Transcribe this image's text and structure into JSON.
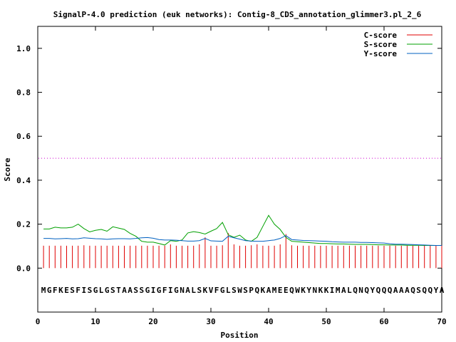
{
  "chart_data": {
    "type": "line",
    "title": "SignalP-4.0 prediction (euk networks): Contig-8_CDS_annotation_glimmer3.pl_2_6",
    "xlabel": "Position",
    "ylabel": "Score",
    "xlim": [
      0,
      70
    ],
    "ylim": [
      -0.2,
      1.1
    ],
    "xticks": [
      0,
      10,
      20,
      30,
      40,
      50,
      60,
      70
    ],
    "yticks": [
      0.0,
      0.2,
      0.4,
      0.6,
      0.8,
      1.0
    ],
    "ytick_labels": [
      "0.0",
      "0.2",
      "0.4",
      "0.6",
      "0.8",
      "1.0"
    ],
    "threshold": 0.5,
    "sequence": "MGFKESFISGLGSTAASSGIGFIGNALSKVFGLSWSPQKAMEEQWKYNKKIMALQNQYQQQAAAQSQQYA",
    "legend_position": "top-right",
    "colors": {
      "c_score": "#e00000",
      "s_score": "#00a000",
      "y_score": "#0060c0",
      "threshold": "#d000d0"
    },
    "series": [
      {
        "name": "C-score",
        "style": "impulses",
        "x": [
          1,
          2,
          3,
          4,
          5,
          6,
          7,
          8,
          9,
          10,
          11,
          12,
          13,
          14,
          15,
          16,
          17,
          18,
          19,
          20,
          21,
          22,
          23,
          24,
          25,
          26,
          27,
          28,
          29,
          30,
          31,
          32,
          33,
          34,
          35,
          36,
          37,
          38,
          39,
          40,
          41,
          42,
          43,
          44,
          45,
          46,
          47,
          48,
          49,
          50,
          51,
          52,
          53,
          54,
          55,
          56,
          57,
          58,
          59,
          60,
          61,
          62,
          63,
          64,
          65,
          66,
          67,
          68,
          69,
          70
        ],
        "values": [
          0.102,
          0.102,
          0.102,
          0.102,
          0.102,
          0.102,
          0.102,
          0.104,
          0.102,
          0.102,
          0.102,
          0.102,
          0.102,
          0.102,
          0.102,
          0.102,
          0.102,
          0.102,
          0.102,
          0.102,
          0.102,
          0.102,
          0.108,
          0.102,
          0.102,
          0.102,
          0.102,
          0.108,
          0.14,
          0.102,
          0.102,
          0.104,
          0.16,
          0.108,
          0.102,
          0.102,
          0.104,
          0.108,
          0.102,
          0.102,
          0.102,
          0.108,
          0.155,
          0.104,
          0.102,
          0.102,
          0.102,
          0.102,
          0.102,
          0.102,
          0.102,
          0.102,
          0.102,
          0.102,
          0.102,
          0.102,
          0.102,
          0.102,
          0.102,
          0.102,
          0.102,
          0.102,
          0.102,
          0.102,
          0.102,
          0.102,
          0.102,
          0.102,
          0.102,
          0.102
        ]
      },
      {
        "name": "S-score",
        "style": "line",
        "x": [
          1,
          2,
          3,
          4,
          5,
          6,
          7,
          8,
          9,
          10,
          11,
          12,
          13,
          14,
          15,
          16,
          17,
          18,
          19,
          20,
          21,
          22,
          23,
          24,
          25,
          26,
          27,
          28,
          29,
          30,
          31,
          32,
          33,
          34,
          35,
          36,
          37,
          38,
          39,
          40,
          41,
          42,
          43,
          44,
          45,
          46,
          47,
          48,
          49,
          50,
          51,
          52,
          53,
          54,
          55,
          56,
          57,
          58,
          59,
          60,
          61,
          62,
          63,
          64,
          65,
          66,
          67,
          68,
          69,
          70
        ],
        "values": [
          0.178,
          0.178,
          0.186,
          0.183,
          0.183,
          0.186,
          0.2,
          0.18,
          0.165,
          0.172,
          0.176,
          0.168,
          0.188,
          0.182,
          0.176,
          0.158,
          0.145,
          0.122,
          0.118,
          0.118,
          0.112,
          0.105,
          0.125,
          0.122,
          0.128,
          0.16,
          0.166,
          0.162,
          0.155,
          0.168,
          0.18,
          0.208,
          0.152,
          0.14,
          0.15,
          0.128,
          0.122,
          0.14,
          0.19,
          0.24,
          0.2,
          0.176,
          0.14,
          0.122,
          0.12,
          0.118,
          0.116,
          0.114,
          0.112,
          0.112,
          0.111,
          0.11,
          0.11,
          0.109,
          0.108,
          0.108,
          0.108,
          0.107,
          0.106,
          0.106,
          0.105,
          0.105,
          0.105,
          0.104,
          0.104,
          0.104,
          0.103,
          0.103,
          0.103,
          0.103
        ]
      },
      {
        "name": "Y-score",
        "style": "line",
        "x": [
          1,
          2,
          3,
          4,
          5,
          6,
          7,
          8,
          9,
          10,
          11,
          12,
          13,
          14,
          15,
          16,
          17,
          18,
          19,
          20,
          21,
          22,
          23,
          24,
          25,
          26,
          27,
          28,
          29,
          30,
          31,
          32,
          33,
          34,
          35,
          36,
          37,
          38,
          39,
          40,
          41,
          42,
          43,
          44,
          45,
          46,
          47,
          48,
          49,
          50,
          51,
          52,
          53,
          54,
          55,
          56,
          57,
          58,
          59,
          60,
          61,
          62,
          63,
          64,
          65,
          66,
          67,
          68,
          69,
          70
        ],
        "values": [
          0.135,
          0.135,
          0.133,
          0.134,
          0.135,
          0.133,
          0.134,
          0.138,
          0.136,
          0.134,
          0.133,
          0.131,
          0.133,
          0.134,
          0.134,
          0.133,
          0.135,
          0.138,
          0.139,
          0.136,
          0.13,
          0.128,
          0.128,
          0.127,
          0.125,
          0.123,
          0.123,
          0.125,
          0.135,
          0.124,
          0.123,
          0.122,
          0.145,
          0.138,
          0.132,
          0.125,
          0.123,
          0.122,
          0.122,
          0.125,
          0.128,
          0.135,
          0.148,
          0.13,
          0.128,
          0.126,
          0.125,
          0.124,
          0.123,
          0.122,
          0.12,
          0.119,
          0.118,
          0.118,
          0.118,
          0.117,
          0.117,
          0.116,
          0.115,
          0.114,
          0.111,
          0.109,
          0.109,
          0.108,
          0.107,
          0.106,
          0.105,
          0.104,
          0.103,
          0.103
        ]
      }
    ]
  }
}
